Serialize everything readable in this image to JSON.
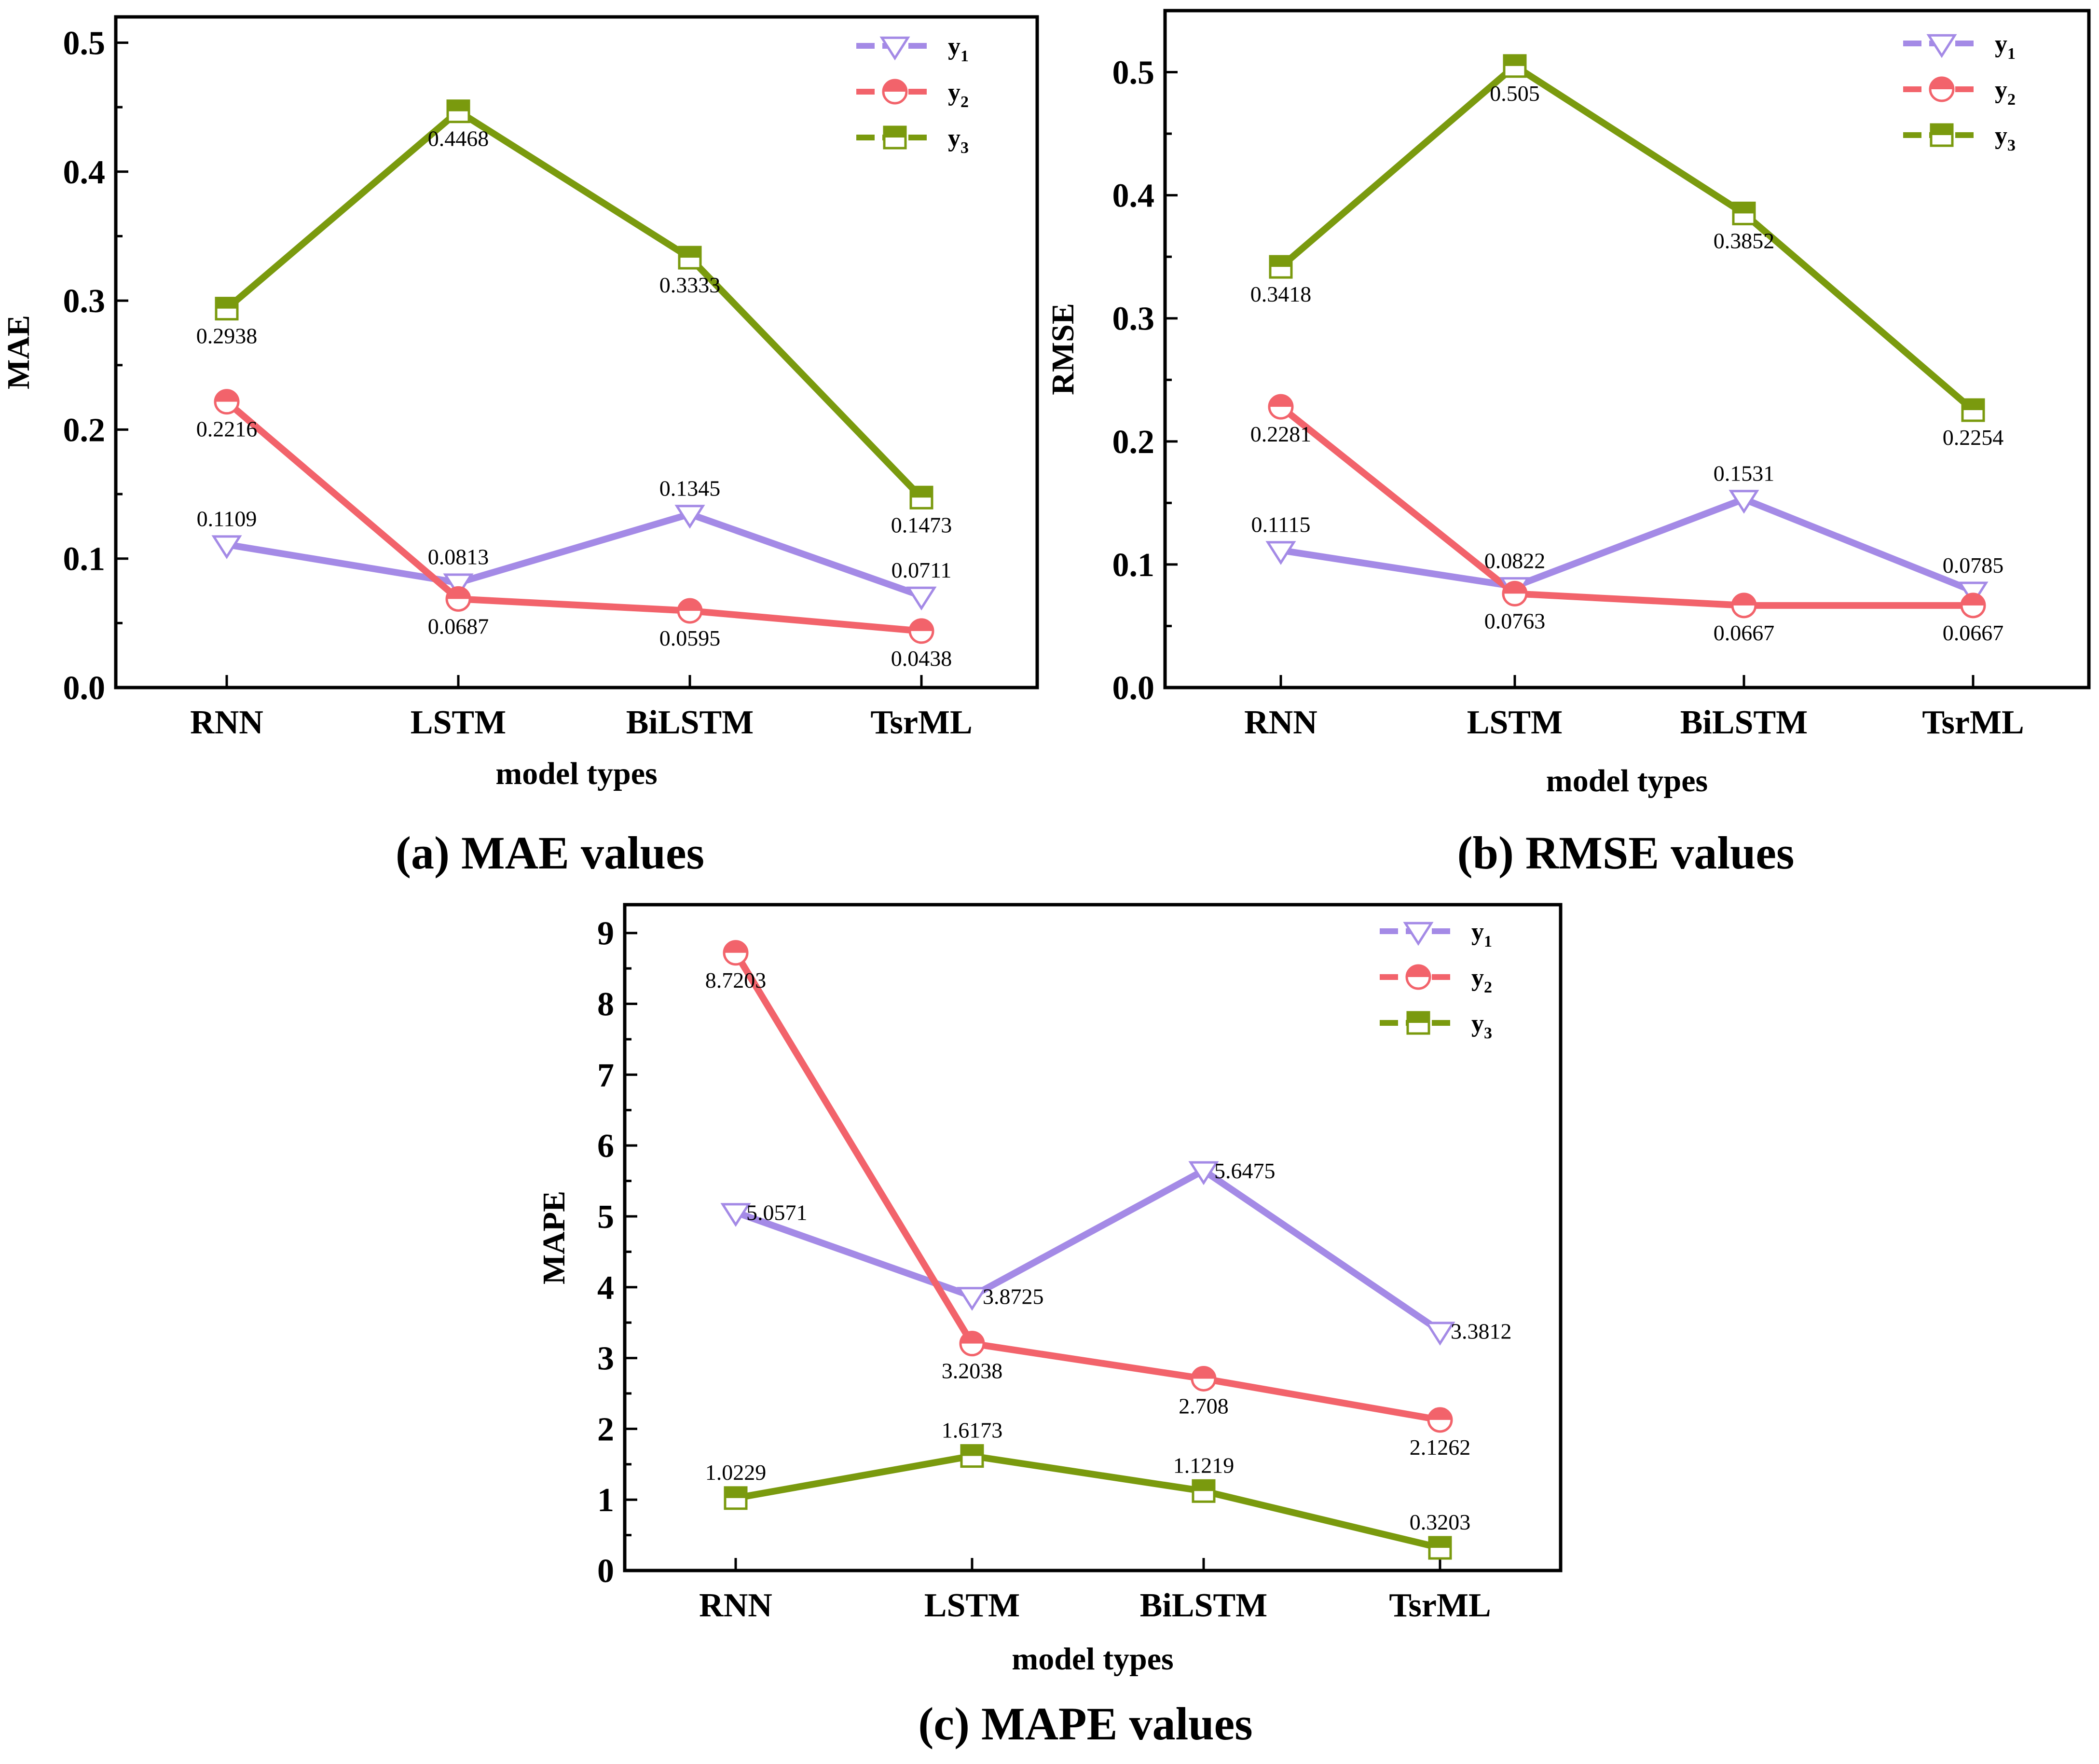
{
  "chart_data": [
    {
      "id": "a",
      "type": "line",
      "caption": "(a) MAE values",
      "xlabel": "model types",
      "ylabel": "MAE",
      "categories": [
        "RNN",
        "LSTM",
        "BiLSTM",
        "TsrML"
      ],
      "ylim": [
        0,
        0.52
      ],
      "yticks": [
        "0.0",
        "0.1",
        "0.2",
        "0.3",
        "0.4",
        "0.5"
      ],
      "ytick_values": [
        0,
        0.1,
        0.2,
        0.3,
        0.4,
        0.5
      ],
      "legend": "top-right",
      "series": [
        {
          "name": "y1",
          "values": [
            0.1109,
            0.0813,
            0.1345,
            0.0711
          ],
          "labels": [
            "0.1109",
            "0.0813",
            "0.1345",
            "0.0711"
          ],
          "label_pos": [
            "above",
            "above",
            "above",
            "above"
          ]
        },
        {
          "name": "y2",
          "values": [
            0.2216,
            0.0687,
            0.0595,
            0.0438
          ],
          "labels": [
            "0.2216",
            "0.0687",
            "0.0595",
            "0.0438"
          ],
          "label_pos": [
            "below",
            "below",
            "below",
            "below"
          ]
        },
        {
          "name": "y3",
          "values": [
            0.2938,
            0.4468,
            0.3333,
            0.1473
          ],
          "labels": [
            "0.2938",
            "0.4468",
            "0.3333",
            "0.1473"
          ],
          "label_pos": [
            "below",
            "below",
            "below",
            "below"
          ]
        }
      ]
    },
    {
      "id": "b",
      "type": "line",
      "caption": "(b) RMSE values",
      "xlabel": "model types",
      "ylabel": "RMSE",
      "categories": [
        "RNN",
        "LSTM",
        "BiLSTM",
        "TsrML"
      ],
      "ylim": [
        0,
        0.55
      ],
      "yticks": [
        "0.0",
        "0.1",
        "0.2",
        "0.3",
        "0.4",
        "0.5"
      ],
      "ytick_values": [
        0,
        0.1,
        0.2,
        0.3,
        0.4,
        0.5
      ],
      "legend": "top-right",
      "series": [
        {
          "name": "y1",
          "values": [
            0.1115,
            0.0822,
            0.1531,
            0.0785
          ],
          "labels": [
            "0.1115",
            "0.0822",
            "0.1531",
            "0.0785"
          ],
          "label_pos": [
            "above",
            "above",
            "above",
            "above"
          ]
        },
        {
          "name": "y2",
          "values": [
            0.2281,
            0.0763,
            0.0667,
            0.0667
          ],
          "labels": [
            "0.2281",
            "0.0763",
            "0.0667",
            "0.0667"
          ],
          "label_pos": [
            "below",
            "below",
            "below",
            "below"
          ]
        },
        {
          "name": "y3",
          "values": [
            0.3418,
            0.505,
            0.3852,
            0.2254
          ],
          "labels": [
            "0.3418",
            "0.505",
            "0.3852",
            "0.2254"
          ],
          "label_pos": [
            "below",
            "below",
            "below",
            "below"
          ]
        }
      ]
    },
    {
      "id": "c",
      "type": "line",
      "caption": "(c) MAPE values",
      "xlabel": "model types",
      "ylabel": "MAPE",
      "categories": [
        "RNN",
        "LSTM",
        "BiLSTM",
        "TsrML"
      ],
      "ylim": [
        0,
        9.4
      ],
      "yticks": [
        "0",
        "1",
        "2",
        "3",
        "4",
        "5",
        "6",
        "7",
        "8",
        "9"
      ],
      "ytick_values": [
        0,
        1,
        2,
        3,
        4,
        5,
        6,
        7,
        8,
        9
      ],
      "legend": "top-right",
      "series": [
        {
          "name": "y1",
          "values": [
            5.0571,
            3.8725,
            5.6475,
            3.3812
          ],
          "labels": [
            "5.0571",
            "3.8725",
            "5.6475",
            "3.3812"
          ],
          "label_pos": [
            "right",
            "right",
            "right",
            "right"
          ]
        },
        {
          "name": "y2",
          "values": [
            8.7203,
            3.2038,
            2.708,
            2.1262
          ],
          "labels": [
            "8.7203",
            "3.2038",
            "2.708",
            "2.1262"
          ],
          "label_pos": [
            "below",
            "below",
            "below",
            "below"
          ]
        },
        {
          "name": "y3",
          "values": [
            1.0229,
            1.6173,
            1.1219,
            0.3203
          ],
          "labels": [
            "1.0229",
            "1.6173",
            "1.1219",
            "0.3203"
          ],
          "label_pos": [
            "above",
            "above",
            "above",
            "above"
          ]
        }
      ]
    }
  ],
  "series_style": {
    "y1": {
      "color": "#a48ae6",
      "marker": "triangle-down-open"
    },
    "y2": {
      "color": "#f2636b",
      "marker": "circle-half"
    },
    "y3": {
      "color": "#7a9a0e",
      "marker": "square-half"
    }
  }
}
